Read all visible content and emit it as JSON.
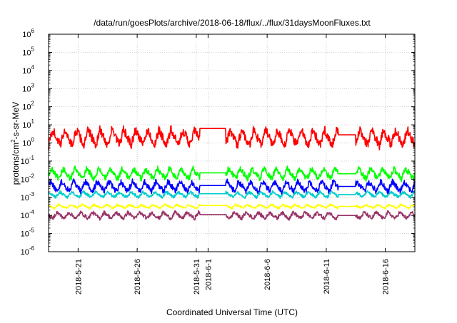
{
  "chart_data": {
    "type": "line",
    "title": "/data/run/goesPlots/archive/2018-06-18/flux/../flux/31daysMoonFluxes.txt",
    "xlabel": "Coordinated Universal Time (UTC)",
    "ylabel": "protons/cm2-s-sr-MeV",
    "ylabel_parts": [
      "protons/cm",
      "2",
      "-s-sr-MeV"
    ],
    "yscale": "log",
    "ylim_exponents": [
      -6,
      6
    ],
    "y_tick_labels": [
      {
        "base": "10",
        "exp": "-6"
      },
      {
        "base": "10",
        "exp": "-5"
      },
      {
        "base": "10",
        "exp": "-4"
      },
      {
        "base": "10",
        "exp": "-3"
      },
      {
        "base": "10",
        "exp": "-2"
      },
      {
        "base": "10",
        "exp": "-1"
      },
      {
        "base": "10",
        "exp": "0"
      },
      {
        "base": "10",
        "exp": "1"
      },
      {
        "base": "10",
        "exp": "2"
      },
      {
        "base": "10",
        "exp": "3"
      },
      {
        "base": "10",
        "exp": "4"
      },
      {
        "base": "10",
        "exp": "5"
      },
      {
        "base": "10",
        "exp": "6"
      }
    ],
    "xlim_days": [
      0,
      31
    ],
    "x_ticks": [
      {
        "day": 2.5,
        "label": "2018-5-21"
      },
      {
        "day": 7.5,
        "label": "2018-5-26"
      },
      {
        "day": 12.5,
        "label": "2018-5-31"
      },
      {
        "day": 13.5,
        "label": "2018-6-1"
      },
      {
        "day": 18.5,
        "label": "2018-6-6"
      },
      {
        "day": 23.5,
        "label": "2018-6-11"
      },
      {
        "day": 28.5,
        "label": "2018-6-16"
      }
    ],
    "grid": true,
    "series_colors": [
      "#ff0000",
      "#00ff00",
      "#0000ff",
      "#00cccc",
      "#ffff00",
      "#993366"
    ],
    "series_baselines_log10": [
      0.3,
      -1.7,
      -2.4,
      -2.85,
      -3.5,
      -4.0
    ],
    "data_gaps_days": [
      [
        13.8,
        14.2
      ],
      [
        21.8,
        22.3
      ]
    ],
    "note": "Flux values fluctuate with roughly one-day periodicity around the baselines; the flat segments near day 13–14 and 25–26 are interpolated plateaus."
  }
}
